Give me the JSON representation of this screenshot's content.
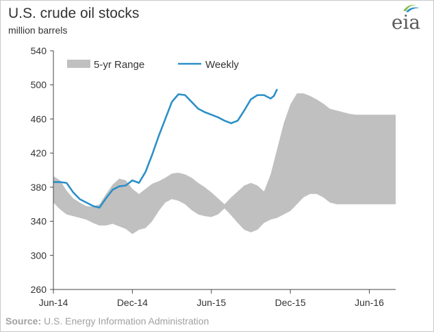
{
  "header": {
    "title": "U.S. crude oil stocks",
    "subtitle": "million barrels",
    "logo_text": "eia"
  },
  "source": {
    "label": "Source:",
    "text": "U.S. Energy Information Administration"
  },
  "colors": {
    "range_fill": "#c0c0c0",
    "weekly_line": "#2a8fc8",
    "axis": "#444444"
  },
  "chart_data": {
    "type": "area",
    "ylim": [
      260,
      540
    ],
    "yticks": [
      260,
      300,
      340,
      380,
      420,
      460,
      500,
      540
    ],
    "xticks": [
      "Jun-14",
      "Dec-14",
      "Jun-15",
      "Dec-15",
      "Jun-16"
    ],
    "xlim_months": 26,
    "legend_position": "top-left",
    "series": [
      {
        "name": "5-yr Range",
        "kind": "band",
        "x_months": [
          0,
          0.5,
          1,
          1.5,
          2,
          2.5,
          3,
          3.5,
          4,
          4.5,
          5,
          5.5,
          6,
          6.5,
          7,
          7.5,
          8,
          8.5,
          9,
          9.5,
          10,
          10.5,
          11,
          11.5,
          12,
          12.5,
          13,
          13.5,
          14,
          14.5,
          15,
          15.5,
          16,
          16.5,
          17,
          17.5,
          18,
          18.5,
          19,
          19.5,
          20,
          20.5,
          21,
          21.5,
          22,
          22.5,
          23,
          23.5,
          24,
          24.5,
          25,
          25.5,
          26
        ],
        "upper": [
          393,
          388,
          376,
          367,
          362,
          358,
          357,
          360,
          372,
          383,
          390,
          388,
          378,
          372,
          378,
          384,
          387,
          391,
          396,
          397,
          395,
          391,
          385,
          380,
          374,
          367,
          360,
          368,
          375,
          382,
          385,
          382,
          375,
          395,
          425,
          455,
          477,
          490,
          490,
          487,
          483,
          478,
          472,
          470,
          468,
          466,
          465,
          465,
          465,
          465,
          465,
          465,
          465
        ],
        "lower": [
          362,
          354,
          348,
          346,
          344,
          342,
          338,
          335,
          335,
          337,
          334,
          331,
          325,
          330,
          332,
          340,
          352,
          362,
          366,
          364,
          360,
          353,
          348,
          346,
          345,
          348,
          355,
          347,
          338,
          330,
          327,
          330,
          338,
          342,
          344,
          348,
          352,
          360,
          368,
          372,
          372,
          368,
          362,
          360,
          360,
          360,
          360,
          360,
          360,
          360,
          360,
          360,
          360
        ]
      },
      {
        "name": "Weekly",
        "kind": "line",
        "x_months": [
          0,
          0.5,
          1,
          1.5,
          2,
          2.5,
          3,
          3.5,
          4,
          4.5,
          5,
          5.5,
          6,
          6.5,
          7,
          7.5,
          8,
          8.5,
          9,
          9.5,
          10,
          10.5,
          11,
          11.5,
          12,
          12.5,
          13,
          13.5,
          14,
          14.5,
          15,
          15.5,
          16,
          16.25,
          16.5,
          16.75,
          17
        ],
        "values": [
          386,
          386,
          385,
          374,
          366,
          362,
          358,
          356,
          367,
          377,
          381,
          382,
          388,
          385,
          398,
          418,
          440,
          460,
          480,
          489,
          488,
          480,
          472,
          468,
          465,
          462,
          458,
          455,
          458,
          470,
          483,
          488,
          488,
          486,
          484,
          487,
          495
        ]
      }
    ]
  }
}
